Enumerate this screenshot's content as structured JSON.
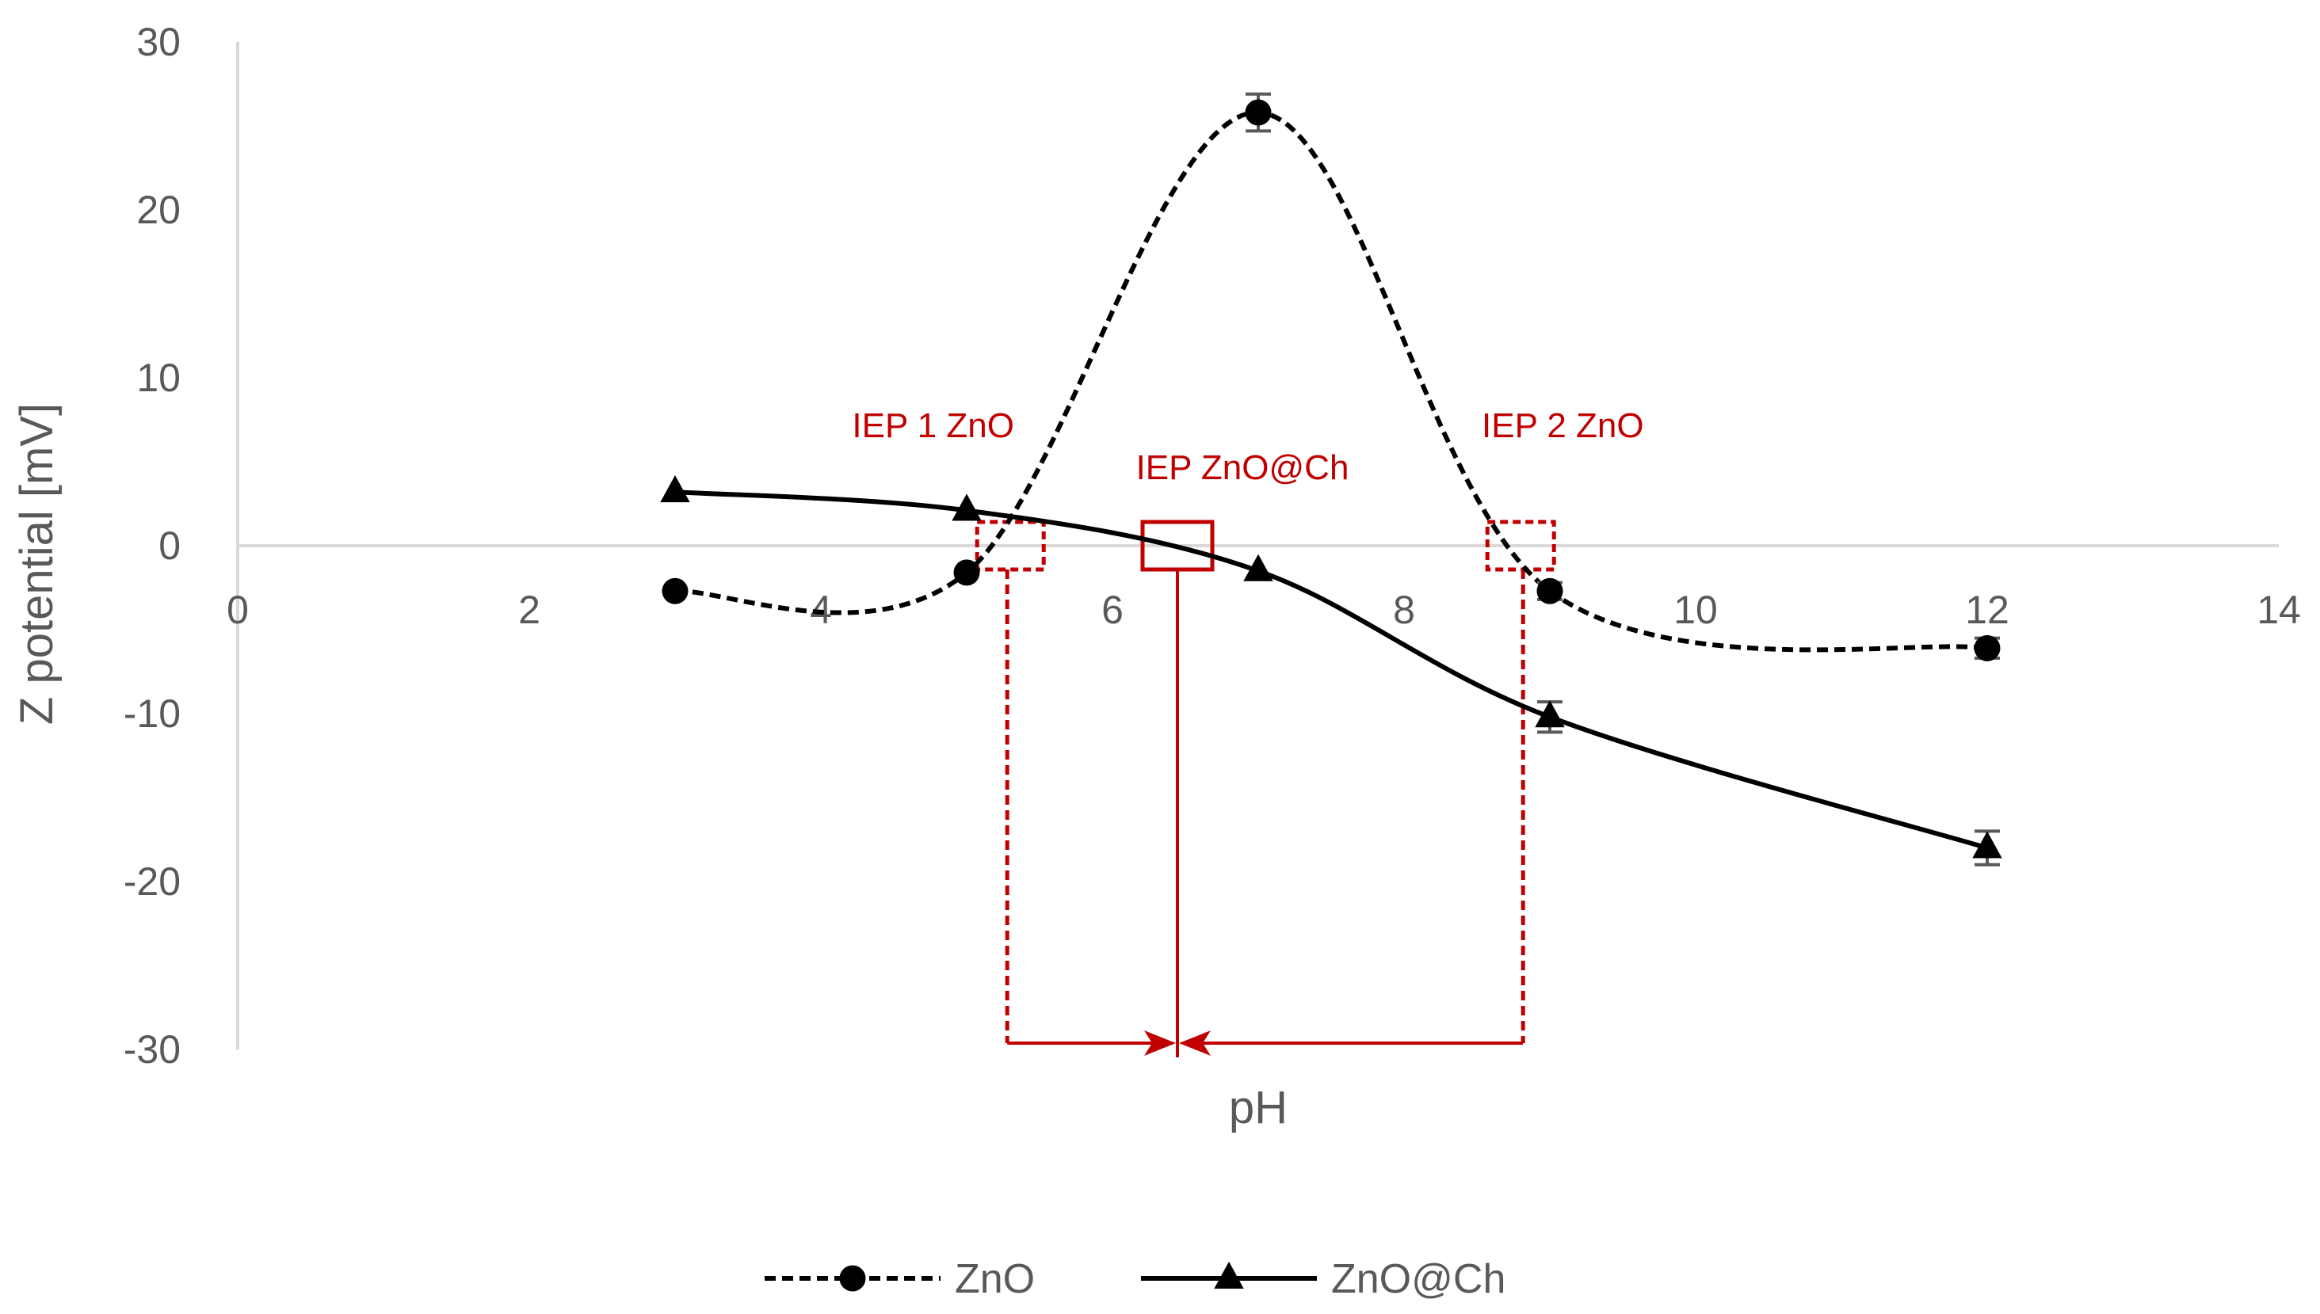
{
  "chart_data": {
    "type": "line",
    "title": "",
    "xlabel": "pH",
    "ylabel": "Z potential [mV]",
    "xlim": [
      0,
      14
    ],
    "ylim": [
      -30,
      30
    ],
    "xticks": [
      0,
      2,
      4,
      6,
      8,
      10,
      12,
      14
    ],
    "yticks": [
      30,
      20,
      10,
      0,
      -10,
      -20,
      -30
    ],
    "grid": false,
    "legend_position": "bottom",
    "series": [
      {
        "name": "ZnO",
        "style": "dashed",
        "marker": "circle",
        "color": "#000000",
        "x": [
          3,
          5,
          7,
          9,
          12
        ],
        "y": [
          -2.7,
          -1.6,
          25.8,
          -2.7,
          -6.1
        ],
        "error": [
          0,
          0,
          1.1,
          0.5,
          0.6
        ]
      },
      {
        "name": "ZnO@Ch",
        "style": "solid",
        "marker": "triangle",
        "color": "#000000",
        "x": [
          3,
          5,
          7,
          9,
          12
        ],
        "y": [
          3.2,
          2.1,
          -1.5,
          -10.2,
          -18.0
        ],
        "error": [
          0,
          0,
          0,
          0.9,
          1.0
        ]
      }
    ],
    "annotations": [
      {
        "label": "IEP 1 ZnO",
        "x": 5.3,
        "color": "#c00000",
        "style": "dashed"
      },
      {
        "label": "IEP ZnO@Ch",
        "x": 6.5,
        "color": "#c00000",
        "style": "solid"
      },
      {
        "label": "IEP 2 ZnO",
        "x": 8.8,
        "color": "#c00000",
        "style": "dashed"
      }
    ]
  }
}
